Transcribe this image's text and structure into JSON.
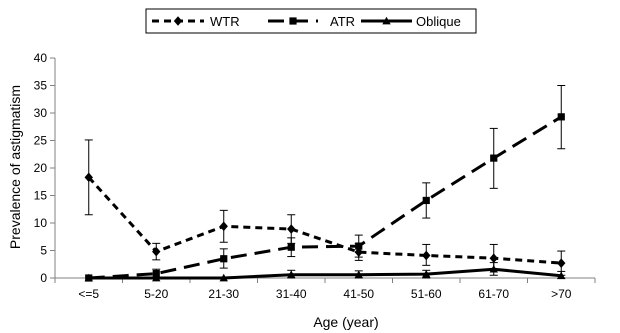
{
  "chart_data": {
    "type": "line",
    "title": "",
    "xlabel": "Age (year)",
    "ylabel": "Prevalence of astigmatism",
    "ylim": [
      0,
      40
    ],
    "yticks": [
      "0",
      "5",
      "10",
      "15",
      "20",
      "25",
      "30",
      "35",
      "40"
    ],
    "categories": [
      "<=5",
      "5-20",
      "21-30",
      "31-40",
      "41-50",
      "51-60",
      "61-70",
      ">70"
    ],
    "legend_position": "top",
    "grid": false,
    "series": [
      {
        "name": "WTR",
        "marker": "diamond",
        "line_style": "short-dash",
        "color": "#000000",
        "values": [
          18.3,
          4.8,
          9.4,
          8.9,
          4.7,
          4.1,
          3.6,
          2.7
        ],
        "error_upper": [
          25.1,
          6.3,
          12.3,
          11.5,
          6.3,
          6.1,
          6.1,
          4.9
        ],
        "error_lower": [
          11.5,
          3.3,
          6.5,
          6.3,
          3.2,
          2.3,
          1.5,
          0.5
        ]
      },
      {
        "name": "ATR",
        "marker": "square",
        "line_style": "long-dash",
        "color": "#000000",
        "values": [
          0.0,
          0.8,
          3.5,
          5.6,
          5.8,
          14.1,
          21.8,
          29.3
        ],
        "error_upper": [
          null,
          1.6,
          5.3,
          7.3,
          7.8,
          17.3,
          27.2,
          35.0
        ],
        "error_lower": [
          null,
          0.1,
          1.8,
          3.9,
          3.8,
          10.9,
          16.3,
          23.5
        ]
      },
      {
        "name": "Oblique",
        "marker": "triangle",
        "line_style": "solid",
        "color": "#000000",
        "values": [
          0.0,
          0.0,
          0.0,
          0.6,
          0.6,
          0.7,
          1.6,
          0.4
        ],
        "error_upper": [
          null,
          null,
          null,
          1.4,
          1.3,
          1.4,
          2.8,
          1.2
        ],
        "error_lower": [
          null,
          null,
          null,
          0.0,
          0.0,
          0.0,
          0.5,
          0.0
        ]
      }
    ]
  }
}
